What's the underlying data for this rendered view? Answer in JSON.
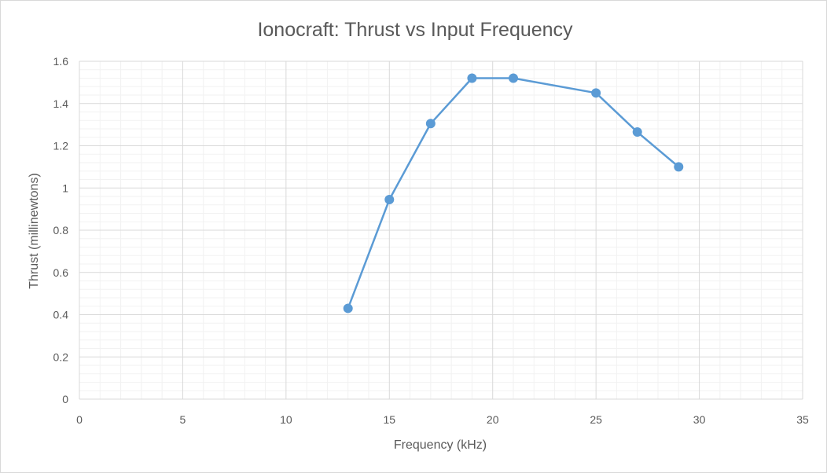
{
  "chart_data": {
    "type": "scatter",
    "title": "Ionocraft: Thrust vs Input Frequency",
    "xlabel": "Frequency (kHz)",
    "ylabel": "Thrust (millinewtons)",
    "xlim": [
      0,
      35
    ],
    "ylim": [
      0,
      1.6
    ],
    "x_ticks": [
      "0",
      "5",
      "10",
      "15",
      "20",
      "25",
      "30",
      "35"
    ],
    "y_ticks": [
      "0",
      "0.2",
      "0.4",
      "0.6",
      "0.8",
      "1",
      "1.2",
      "1.4",
      "1.6"
    ],
    "grid": "major and minor",
    "legend": "none",
    "markers": "circle",
    "line": "straight lines with markers",
    "series": [
      {
        "color": "#5b9bd5",
        "x": [
          13,
          15,
          17,
          19,
          21,
          25,
          27,
          29
        ],
        "y": [
          0.43,
          0.945,
          1.305,
          1.52,
          1.52,
          1.45,
          1.265,
          1.1
        ]
      }
    ]
  }
}
